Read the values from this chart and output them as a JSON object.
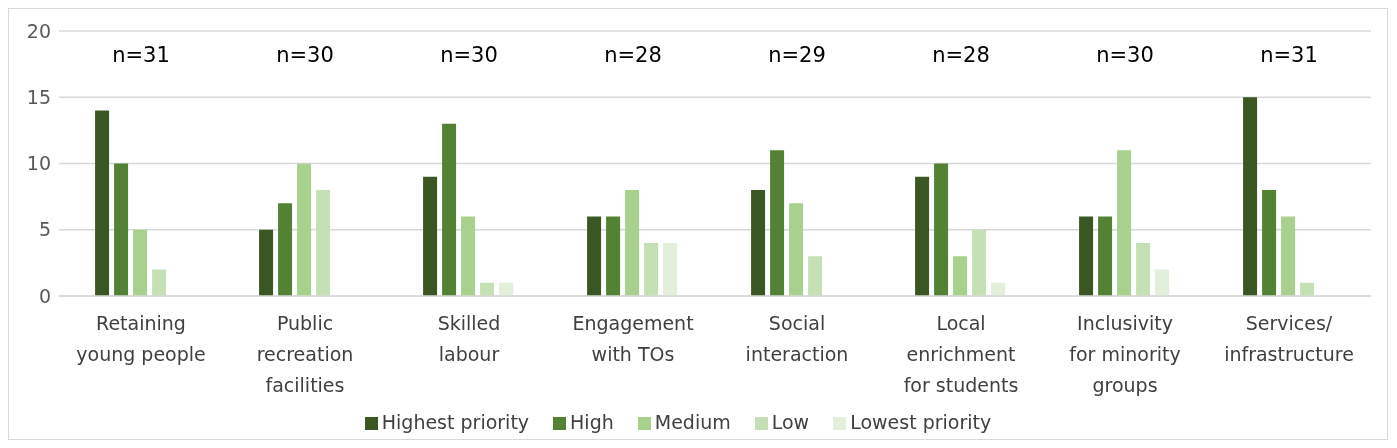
{
  "chart_data": {
    "type": "bar",
    "categories": [
      "Retaining young people",
      "Public recreation facilities",
      "Skilled labour",
      "Engagement with TOs",
      "Social interaction",
      "Local enrichment for students",
      "Inclusivity for minority groups",
      "Services/ infrastructure"
    ],
    "series": [
      {
        "name": "Highest priority",
        "color": "#3a5723",
        "values": [
          14,
          5,
          9,
          6,
          8,
          9,
          6,
          15
        ]
      },
      {
        "name": "High",
        "color": "#548235",
        "values": [
          10,
          7,
          13,
          6,
          11,
          10,
          6,
          8
        ]
      },
      {
        "name": "Medium",
        "color": "#a9d18e",
        "values": [
          5,
          10,
          6,
          8,
          7,
          3,
          11,
          6
        ]
      },
      {
        "name": "Low",
        "color": "#c5e0b4",
        "values": [
          2,
          8,
          1,
          4,
          3,
          5,
          4,
          1
        ]
      },
      {
        "name": "Lowest priority",
        "color": "#e2efda",
        "values": [
          0,
          0,
          1,
          4,
          0,
          1,
          2,
          0
        ]
      }
    ],
    "ylim": [
      0,
      20
    ],
    "yticks": [
      0,
      5,
      10,
      15,
      20
    ],
    "grid": "y",
    "legend": "bottom",
    "annotations": [
      "n=31",
      "n=30",
      "n=30",
      "n=28",
      "n=29",
      "n=28",
      "n=30",
      "n=31"
    ]
  }
}
